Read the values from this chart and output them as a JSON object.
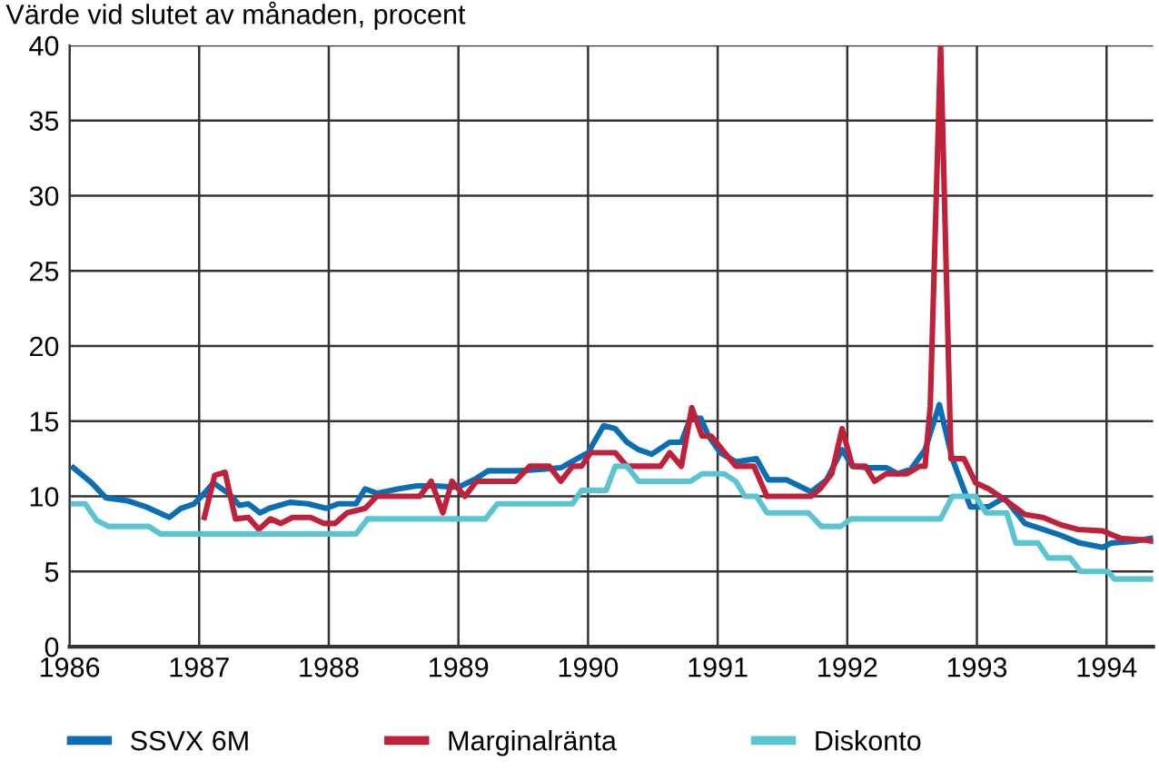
{
  "chart_data": {
    "type": "line",
    "title": "Värde vid slutet av månaden, procent",
    "xlim": [
      1986,
      1994.36
    ],
    "xticks": [
      1986,
      1987,
      1988,
      1989,
      1990,
      1991,
      1992,
      1993,
      1994
    ],
    "ylim": [
      0,
      40
    ],
    "yticks": [
      0,
      5,
      10,
      15,
      20,
      25,
      30,
      35,
      40
    ],
    "grid": true,
    "legend": "bottom",
    "marker": "none",
    "line_style": "solid",
    "series": [
      {
        "name": "SSVX 6M",
        "color": "#0a6eb4",
        "x": [
          1986.03,
          1986.17,
          1986.28,
          1986.45,
          1986.59,
          1986.77,
          1986.86,
          1986.96,
          1987.05,
          1987.11,
          1987.24,
          1987.31,
          1987.38,
          1987.47,
          1987.54,
          1987.7,
          1987.84,
          1987.98,
          1988.07,
          1988.21,
          1988.28,
          1988.37,
          1988.54,
          1988.68,
          1988.82,
          1989.0,
          1989.14,
          1989.23,
          1989.47,
          1989.65,
          1989.79,
          1990.0,
          1990.12,
          1990.21,
          1990.3,
          1990.39,
          1990.49,
          1990.63,
          1990.72,
          1990.79,
          1990.87,
          1990.93,
          1991.02,
          1991.14,
          1991.3,
          1991.39,
          1991.53,
          1991.72,
          1991.84,
          1991.96,
          1992.04,
          1992.16,
          1992.3,
          1992.39,
          1992.49,
          1992.6,
          1992.71,
          1992.81,
          1992.95,
          1993.09,
          1993.21,
          1993.37,
          1993.51,
          1993.65,
          1993.79,
          1993.97,
          1994.04,
          1994.2,
          1994.34
        ],
        "values": [
          11.9,
          10.9,
          9.9,
          9.7,
          9.3,
          8.6,
          9.2,
          9.5,
          10.3,
          10.9,
          10.1,
          9.4,
          9.5,
          8.9,
          9.2,
          9.6,
          9.5,
          9.2,
          9.5,
          9.5,
          10.5,
          10.2,
          10.5,
          10.7,
          10.7,
          10.6,
          11.2,
          11.7,
          11.7,
          11.8,
          11.9,
          12.9,
          14.7,
          14.5,
          13.6,
          13.1,
          12.8,
          13.6,
          13.6,
          15.2,
          15.2,
          14.0,
          12.9,
          12.3,
          12.5,
          11.1,
          11.1,
          10.3,
          11.1,
          13.1,
          12.0,
          11.9,
          11.9,
          11.5,
          11.8,
          13.1,
          16.1,
          12.5,
          9.3,
          9.3,
          9.9,
          8.2,
          7.8,
          7.4,
          6.9,
          6.6,
          6.9,
          7.0,
          7.2
        ]
      },
      {
        "name": "Marginalränta",
        "color": "#c0213a",
        "x": [
          1987.04,
          1987.12,
          1987.2,
          1987.28,
          1987.38,
          1987.46,
          1987.55,
          1987.63,
          1987.72,
          1987.86,
          1987.96,
          1988.05,
          1988.14,
          1988.28,
          1988.37,
          1988.7,
          1988.79,
          1988.88,
          1988.95,
          1989.05,
          1989.14,
          1989.44,
          1989.55,
          1989.7,
          1989.79,
          1989.88,
          1989.95,
          1990.02,
          1990.21,
          1990.3,
          1990.56,
          1990.63,
          1990.72,
          1990.8,
          1990.88,
          1990.95,
          1991.14,
          1991.28,
          1991.38,
          1991.72,
          1991.79,
          1991.88,
          1991.96,
          1992.04,
          1992.14,
          1992.21,
          1992.3,
          1992.46,
          1992.56,
          1992.6,
          1992.64,
          1992.72,
          1992.8,
          1992.9,
          1992.99,
          1993.09,
          1993.21,
          1993.37,
          1993.51,
          1993.65,
          1993.78,
          1993.97,
          1994.11,
          1994.29,
          1994.36
        ],
        "values": [
          8.6,
          11.4,
          11.6,
          8.5,
          8.6,
          7.8,
          8.5,
          8.2,
          8.6,
          8.6,
          8.2,
          8.2,
          8.9,
          9.2,
          10.0,
          10.0,
          11.0,
          8.9,
          11.0,
          10.0,
          11.0,
          11.0,
          12.0,
          12.0,
          11.0,
          12.0,
          12.0,
          12.9,
          12.9,
          12.0,
          12.0,
          12.9,
          12.0,
          15.9,
          14.0,
          14.0,
          12.0,
          12.0,
          10.0,
          10.0,
          10.5,
          11.5,
          14.5,
          12.0,
          12.0,
          11.0,
          11.5,
          11.5,
          12.0,
          12.0,
          16.0,
          40,
          12.5,
          12.5,
          10.9,
          10.5,
          9.8,
          8.8,
          8.6,
          8.1,
          7.8,
          7.7,
          7.2,
          7.1,
          7.0
        ]
      },
      {
        "name": "Diskonto",
        "color": "#5bc4d1",
        "x": [
          1986.03,
          1986.12,
          1986.21,
          1986.3,
          1986.61,
          1986.7,
          1988.21,
          1988.3,
          1989.21,
          1989.3,
          1989.88,
          1989.95,
          1990.14,
          1990.21,
          1990.3,
          1990.39,
          1990.79,
          1990.88,
          1991.05,
          1991.14,
          1991.21,
          1991.3,
          1991.38,
          1991.7,
          1991.8,
          1991.95,
          1992.03,
          1992.72,
          1992.81,
          1992.99,
          1993.07,
          1993.23,
          1993.3,
          1993.47,
          1993.55,
          1993.72,
          1993.8,
          1994.01,
          1994.06,
          1994.36
        ],
        "values": [
          9.5,
          9.5,
          8.4,
          8.0,
          8.0,
          7.5,
          7.5,
          8.5,
          8.5,
          9.5,
          9.5,
          10.4,
          10.4,
          12.0,
          12.0,
          11.0,
          11.0,
          11.5,
          11.5,
          11.0,
          10.0,
          10.0,
          8.9,
          8.9,
          8.0,
          8.0,
          8.5,
          8.5,
          10.0,
          10.0,
          8.9,
          8.9,
          6.9,
          6.9,
          5.9,
          5.9,
          5.0,
          5.0,
          4.5,
          4.5
        ]
      }
    ]
  }
}
